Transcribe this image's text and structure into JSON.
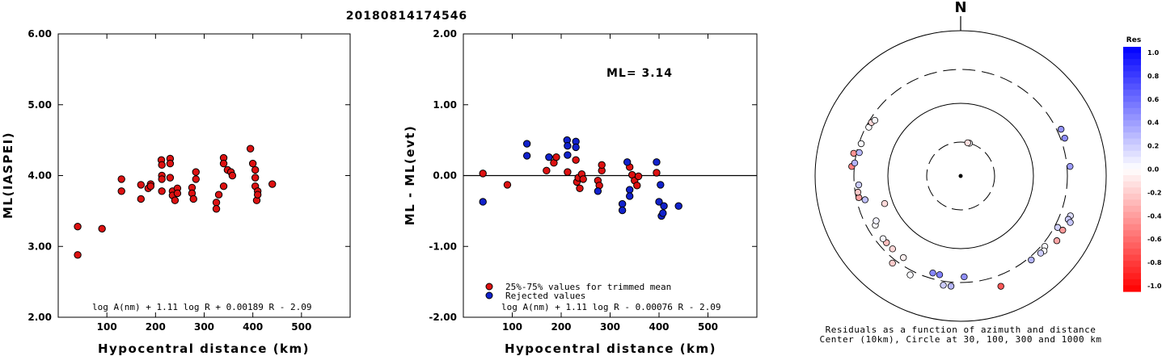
{
  "event_id": "20180814174546",
  "chart_data": [
    {
      "type": "scatter",
      "ylabel": "ML(IASPEI)",
      "xlabel": "Hypocentral distance (km)",
      "xlim": [
        0,
        600
      ],
      "ylim": [
        2.0,
        6.0
      ],
      "xticks": [
        "100",
        "200",
        "300",
        "400",
        "500"
      ],
      "yticks": [
        "2.00",
        "3.00",
        "4.00",
        "5.00",
        "6.00"
      ],
      "formula": "log A(nm) + 1.11 log R + 0.00189 R - 2.09",
      "marker_color": "#dd1111",
      "points": [
        [
          40,
          3.28
        ],
        [
          40,
          2.88
        ],
        [
          90,
          3.25
        ],
        [
          130,
          3.95
        ],
        [
          130,
          3.78
        ],
        [
          170,
          3.87
        ],
        [
          170,
          3.67
        ],
        [
          185,
          3.82
        ],
        [
          190,
          3.88
        ],
        [
          190,
          3.85
        ],
        [
          212,
          4.22
        ],
        [
          213,
          4.15
        ],
        [
          213,
          4.0
        ],
        [
          213,
          3.95
        ],
        [
          213,
          3.78
        ],
        [
          230,
          4.24
        ],
        [
          230,
          4.17
        ],
        [
          230,
          3.97
        ],
        [
          235,
          3.78
        ],
        [
          235,
          3.72
        ],
        [
          240,
          3.65
        ],
        [
          245,
          3.82
        ],
        [
          245,
          3.75
        ],
        [
          275,
          3.83
        ],
        [
          275,
          3.75
        ],
        [
          278,
          3.67
        ],
        [
          283,
          4.05
        ],
        [
          283,
          3.95
        ],
        [
          325,
          3.62
        ],
        [
          325,
          3.53
        ],
        [
          330,
          3.73
        ],
        [
          340,
          4.25
        ],
        [
          340,
          4.17
        ],
        [
          340,
          3.85
        ],
        [
          348,
          4.08
        ],
        [
          355,
          4.05
        ],
        [
          358,
          4.0
        ],
        [
          395,
          4.38
        ],
        [
          400,
          4.17
        ],
        [
          405,
          4.08
        ],
        [
          405,
          3.97
        ],
        [
          405,
          3.85
        ],
        [
          408,
          3.65
        ],
        [
          410,
          3.78
        ],
        [
          410,
          3.73
        ],
        [
          440,
          3.88
        ]
      ]
    },
    {
      "type": "scatter",
      "ylabel": "ML - ML(evt)",
      "xlabel": "Hypocentral distance (km)",
      "xlim": [
        0,
        600
      ],
      "ylim": [
        -2.0,
        2.0
      ],
      "xticks": [
        "100",
        "200",
        "300",
        "400",
        "500"
      ],
      "yticks": [
        "-2.00",
        "-1.00",
        "0.00",
        "1.00",
        "2.00"
      ],
      "annotation": "ML= 3.14",
      "formula": "log A(nm) + 1.11 log R - 0.00076 R - 2.09",
      "legend": [
        {
          "label": "25%-75% values for trimmed mean",
          "color": "#dd1111"
        },
        {
          "label": "Rejected values",
          "color": "#1122cc"
        }
      ],
      "series": [
        {
          "name": "25%-75% values for trimmed mean",
          "color": "#dd1111",
          "points": [
            [
              40,
              0.03
            ],
            [
              90,
              -0.13
            ],
            [
              170,
              0.07
            ],
            [
              185,
              0.18
            ],
            [
              190,
              0.26
            ],
            [
              213,
              0.05
            ],
            [
              230,
              0.22
            ],
            [
              232,
              -0.09
            ],
            [
              235,
              -0.03
            ],
            [
              238,
              -0.18
            ],
            [
              242,
              0.02
            ],
            [
              245,
              -0.05
            ],
            [
              275,
              -0.07
            ],
            [
              278,
              -0.14
            ],
            [
              283,
              0.07
            ],
            [
              283,
              0.15
            ],
            [
              340,
              0.12
            ],
            [
              345,
              0.01
            ],
            [
              350,
              -0.07
            ],
            [
              355,
              -0.14
            ],
            [
              358,
              -0.01
            ],
            [
              395,
              0.04
            ]
          ]
        },
        {
          "name": "Rejected values",
          "color": "#1122cc",
          "points": [
            [
              40,
              -0.37
            ],
            [
              130,
              0.45
            ],
            [
              130,
              0.28
            ],
            [
              175,
              0.26
            ],
            [
              212,
              0.5
            ],
            [
              213,
              0.42
            ],
            [
              213,
              0.29
            ],
            [
              230,
              0.48
            ],
            [
              230,
              0.4
            ],
            [
              275,
              -0.22
            ],
            [
              325,
              -0.4
            ],
            [
              325,
              -0.49
            ],
            [
              335,
              0.19
            ],
            [
              340,
              -0.2
            ],
            [
              340,
              -0.29
            ],
            [
              395,
              0.19
            ],
            [
              400,
              -0.37
            ],
            [
              403,
              -0.13
            ],
            [
              405,
              -0.57
            ],
            [
              408,
              -0.53
            ],
            [
              410,
              -0.43
            ],
            [
              440,
              -0.43
            ]
          ]
        }
      ]
    },
    {
      "type": "polar-scatter",
      "north_label": "N",
      "caption_line1": "Residuals as a function of azimuth and distance",
      "caption_line2": "Center (10km), Circle at 30, 100, 300 and 1000 km",
      "rings_km": [
        30,
        100,
        300,
        1000
      ],
      "colorbar": {
        "title": "Res",
        "labels": [
          "1.0",
          "0.8",
          "0.6",
          "0.4",
          "0.2",
          "0.0",
          "-0.2",
          "-0.4",
          "-0.6",
          "-0.8",
          "-1.0"
        ],
        "min": -1.0,
        "max": 1.0
      },
      "stations": [
        {
          "az": 15,
          "dist_km": 30,
          "res": 0.01
        },
        {
          "az": 12,
          "dist_km": 30,
          "res": -0.12
        },
        {
          "az": 65,
          "dist_km": 340,
          "res": 0.42
        },
        {
          "az": 70,
          "dist_km": 340,
          "res": 0.45
        },
        {
          "az": 85,
          "dist_km": 330,
          "res": 0.39
        },
        {
          "az": 110,
          "dist_km": 410,
          "res": 0.13
        },
        {
          "az": 112,
          "dist_km": 400,
          "res": 0.2
        },
        {
          "az": 113,
          "dist_km": 440,
          "res": 0.22
        },
        {
          "az": 118,
          "dist_km": 330,
          "res": 0.18
        },
        {
          "az": 118,
          "dist_km": 395,
          "res": -0.4
        },
        {
          "az": 124,
          "dist_km": 400,
          "res": -0.35
        },
        {
          "az": 130,
          "dist_km": 330,
          "res": 0.02
        },
        {
          "az": 132,
          "dist_km": 355,
          "res": 0.01
        },
        {
          "az": 134,
          "dist_km": 345,
          "res": 0.19
        },
        {
          "az": 140,
          "dist_km": 330,
          "res": 0.29
        },
        {
          "az": 160,
          "dist_km": 420,
          "res": -0.66
        },
        {
          "az": 178,
          "dist_km": 250,
          "res": 0.43
        },
        {
          "az": 185,
          "dist_km": 340,
          "res": 0.28
        },
        {
          "az": 189,
          "dist_km": 340,
          "res": 0.2
        },
        {
          "az": 192,
          "dist_km": 250,
          "res": 0.5
        },
        {
          "az": 196,
          "dist_km": 250,
          "res": 0.47
        },
        {
          "az": 207,
          "dist_km": 345,
          "res": 0.02
        },
        {
          "az": 215,
          "dist_km": 240,
          "res": -0.06
        },
        {
          "az": 218,
          "dist_km": 340,
          "res": -0.2
        },
        {
          "az": 223,
          "dist_km": 240,
          "res": -0.16
        },
        {
          "az": 228,
          "dist_km": 240,
          "res": -0.25
        },
        {
          "az": 231,
          "dist_km": 240,
          "res": 0.03
        },
        {
          "az": 240,
          "dist_km": 230,
          "res": 0.01
        },
        {
          "az": 242,
          "dist_km": 210,
          "res": 0.05
        },
        {
          "az": 250,
          "dist_km": 130,
          "res": -0.15
        },
        {
          "az": 256,
          "dist_km": 230,
          "res": 0.24
        },
        {
          "az": 258,
          "dist_km": 275,
          "res": -0.37
        },
        {
          "az": 261,
          "dist_km": 275,
          "res": -0.21
        },
        {
          "az": 265,
          "dist_km": 260,
          "res": 0.2
        },
        {
          "az": 275,
          "dist_km": 325,
          "res": -0.5
        },
        {
          "az": 277,
          "dist_km": 300,
          "res": 0.3
        },
        {
          "az": 282,
          "dist_km": 325,
          "res": -0.42
        },
        {
          "az": 283,
          "dist_km": 275,
          "res": 0.28
        },
        {
          "az": 288,
          "dist_km": 280,
          "res": 0.01
        },
        {
          "az": 298,
          "dist_km": 275,
          "res": 0.01
        },
        {
          "az": 301,
          "dist_km": 275,
          "res": -0.15
        },
        {
          "az": 303,
          "dist_km": 260,
          "res": 0.02
        }
      ]
    }
  ]
}
